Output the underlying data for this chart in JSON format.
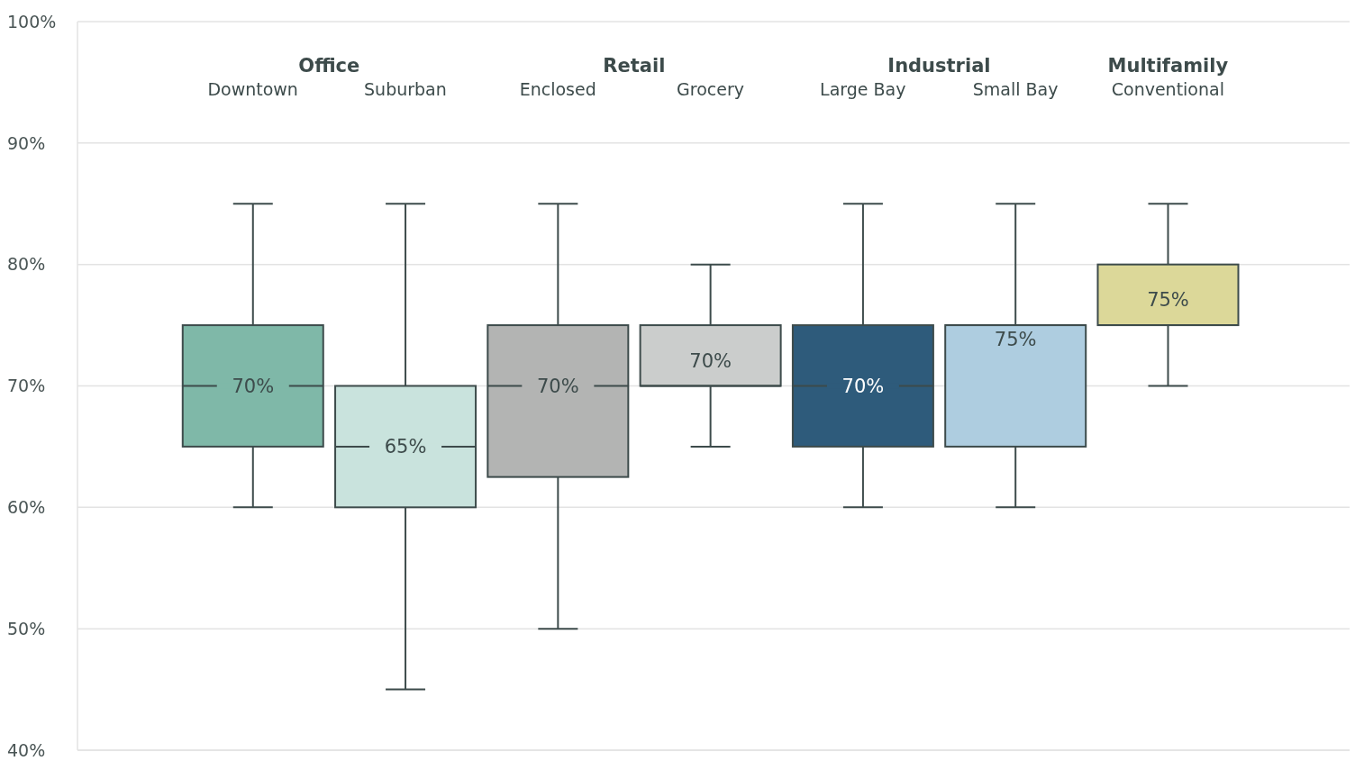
{
  "chart_data": {
    "type": "box",
    "categories": [
      "Downtown",
      "Suburban",
      "Enclosed",
      "Grocery",
      "Large Bay",
      "Small Bay",
      "Conventional"
    ],
    "annotations": [
      "Office",
      "Retail",
      "Industrial",
      "Multifamily"
    ],
    "boxes": [
      {
        "low": 60,
        "q1": 65,
        "median": 70,
        "q3": 75,
        "high": 85
      },
      {
        "low": 45,
        "q1": 60,
        "median": 65,
        "q3": 70,
        "high": 85
      },
      {
        "low": 50,
        "q1": 62.5,
        "median": 70,
        "q3": 75,
        "high": 85
      },
      {
        "low": 65,
        "q1": 70,
        "median": 70,
        "q3": 75,
        "high": 80
      },
      {
        "low": 60,
        "q1": 65,
        "median": 70,
        "q3": 75,
        "high": 85
      },
      {
        "low": 60,
        "q1": 65,
        "median": 75,
        "q3": 75,
        "high": 85
      },
      {
        "low": 70,
        "q1": 75,
        "median": 75,
        "q3": 80,
        "high": 85
      }
    ],
    "colors": [
      "#7fb8a8",
      "#c9e3dd",
      "#b3b4b3",
      "#cbcdcc",
      "#2e5b7b",
      "#aecde0",
      "#dcd899"
    ],
    "ylim": [
      40,
      100
    ],
    "yticks": [
      {
        "value": 40,
        "label": "40%"
      },
      {
        "value": 50,
        "label": "50%"
      },
      {
        "value": 60,
        "label": "60%"
      },
      {
        "value": 70,
        "label": "70%"
      },
      {
        "value": 80,
        "label": "80%"
      },
      {
        "value": 90,
        "label": "90%"
      },
      {
        "value": 100,
        "label": "100%"
      }
    ],
    "value_labels": [
      "70%",
      "65%",
      "70%",
      "70%",
      "70%",
      "75%",
      "75%"
    ],
    "grid": "y",
    "legend": false
  }
}
